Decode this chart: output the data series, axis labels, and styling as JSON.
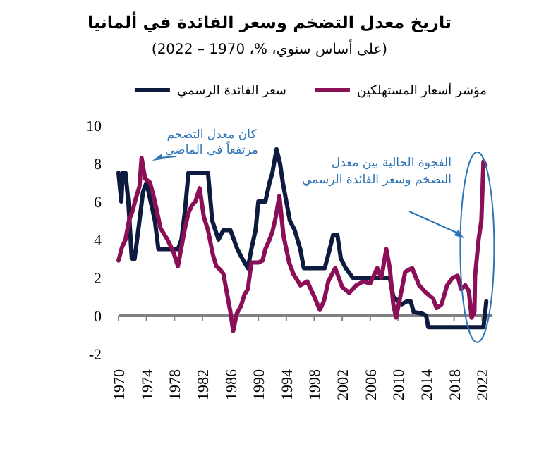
{
  "chart_data": {
    "type": "line",
    "title": "تاريخ معدل التضخم وسعر الفائدة في ألمانيا",
    "subtitle": "(على أساس سنوي، %، 1970 – 2022)",
    "xlim": [
      1969.5,
      2023.5
    ],
    "xticks": [
      1970,
      1974,
      1978,
      1982,
      1986,
      1990,
      1994,
      1998,
      2002,
      2006,
      2010,
      2014,
      2018,
      2022
    ],
    "ylim": [
      -2,
      10
    ],
    "yticks": [
      -2,
      0,
      2,
      4,
      6,
      8,
      10
    ],
    "legend": "top",
    "line_style": "solid",
    "marker": "none",
    "series": [
      {
        "name": "مؤشر أسعار المستهلكين",
        "color": "#8b0f56",
        "x": [
          1970,
          1970.5,
          1971,
          1971.5,
          1972,
          1972.5,
          1973,
          1973.3,
          1973.8,
          1974.5,
          1975,
          1975.5,
          1976,
          1977,
          1977.8,
          1978.5,
          1979,
          1979.5,
          1980,
          1980.5,
          1981,
          1981.6,
          1982.2,
          1982.8,
          1983.5,
          1984,
          1984.6,
          1985,
          1985.5,
          1986,
          1986.4,
          1986.9,
          1987.5,
          1988,
          1988.5,
          1989,
          1990,
          1990.6,
          1991,
          1991.6,
          1992,
          1992.5,
          1993,
          1993.6,
          1994.4,
          1995,
          1996,
          1997,
          1998,
          1998.8,
          1999.4,
          2000,
          2001,
          2002,
          2003,
          2004,
          2005,
          2006,
          2007,
          2007.6,
          2008.3,
          2008.8,
          2009.3,
          2009.7,
          2010.3,
          2011,
          2012,
          2013,
          2014,
          2015,
          2015.5,
          2016.2,
          2017,
          2017.8,
          2018.5,
          2019,
          2019.6,
          2020.1,
          2020.5,
          2020.9,
          2021,
          2021.5,
          2021.9,
          2022.2,
          2022.5
        ],
        "values": [
          2.9,
          3.6,
          4.0,
          5.0,
          5.5,
          6.2,
          6.8,
          8.3,
          7.2,
          7.0,
          6.3,
          5.5,
          4.6,
          4.0,
          3.4,
          2.6,
          3.6,
          4.6,
          5.4,
          5.8,
          6.0,
          6.7,
          5.2,
          4.5,
          3.2,
          2.6,
          2.4,
          2.2,
          1.2,
          0.2,
          -0.8,
          0.1,
          0.5,
          1.1,
          1.4,
          2.8,
          2.8,
          2.9,
          3.5,
          4.0,
          4.4,
          5.2,
          6.3,
          4.2,
          2.8,
          2.2,
          1.6,
          1.8,
          1.0,
          0.3,
          0.8,
          1.8,
          2.5,
          1.5,
          1.2,
          1.6,
          1.8,
          1.7,
          2.5,
          2.0,
          3.5,
          2.5,
          0.6,
          -0.1,
          1.0,
          2.3,
          2.5,
          1.6,
          1.2,
          0.9,
          0.4,
          0.6,
          1.6,
          2.0,
          2.1,
          1.4,
          1.6,
          1.3,
          -0.1,
          0.2,
          2.1,
          4.0,
          5.0,
          8.1,
          7.9
        ]
      },
      {
        "name": "سعر الفائدة الرسمي",
        "color": "#0d1b3e",
        "x": [
          1970,
          1970.4,
          1970.6,
          1971,
          1971.4,
          1971.9,
          1972.3,
          1973,
          1973.5,
          1974,
          1974.6,
          1975.2,
          1975.7,
          1976.5,
          1977.5,
          1978.5,
          1979,
          1979.5,
          1980,
          1981,
          1982,
          1982.8,
          1983.4,
          1984.3,
          1985,
          1986,
          1987,
          1987.7,
          1988.5,
          1989,
          1989.6,
          1990,
          1991,
          1991.6,
          1992,
          1992.6,
          1993.1,
          1993.5,
          1994,
          1994.5,
          1995.2,
          1996,
          1996.5,
          1999.5,
          2000,
          2000.7,
          2001.3,
          2001.8,
          2002.5,
          2003.5,
          2008.8,
          2009.3,
          2010.5,
          2011.2,
          2011.8,
          2012.2,
          2013.5,
          2014,
          2014.3,
          2016,
          2022.2,
          2022.4,
          2022.6
        ],
        "values": [
          7.5,
          6.0,
          7.5,
          7.5,
          6.0,
          3.0,
          3.0,
          5.0,
          6.5,
          7.0,
          6.0,
          5.0,
          3.5,
          3.5,
          3.5,
          3.5,
          4.0,
          5.5,
          7.5,
          7.5,
          7.5,
          7.5,
          5.0,
          4.0,
          4.5,
          4.5,
          3.5,
          3.0,
          2.5,
          3.5,
          4.5,
          6.0,
          6.0,
          7.0,
          7.5,
          8.75,
          8.0,
          7.0,
          6.0,
          5.0,
          4.5,
          3.5,
          2.5,
          2.5,
          3.2,
          4.25,
          4.25,
          3.0,
          2.5,
          2.0,
          2.0,
          1.0,
          0.6,
          0.75,
          0.75,
          0.2,
          0.1,
          0.0,
          -0.6,
          -0.6,
          -0.6,
          0.0,
          0.75
        ]
      }
    ],
    "annotations": [
      {
        "text": "كان معدل التضخم مرتفعاً في الماضي",
        "x": 1974,
        "y": 8
      },
      "الفجوة الحالية بين معدل التضخم وسعر الفائدة الرسمي"
    ]
  }
}
